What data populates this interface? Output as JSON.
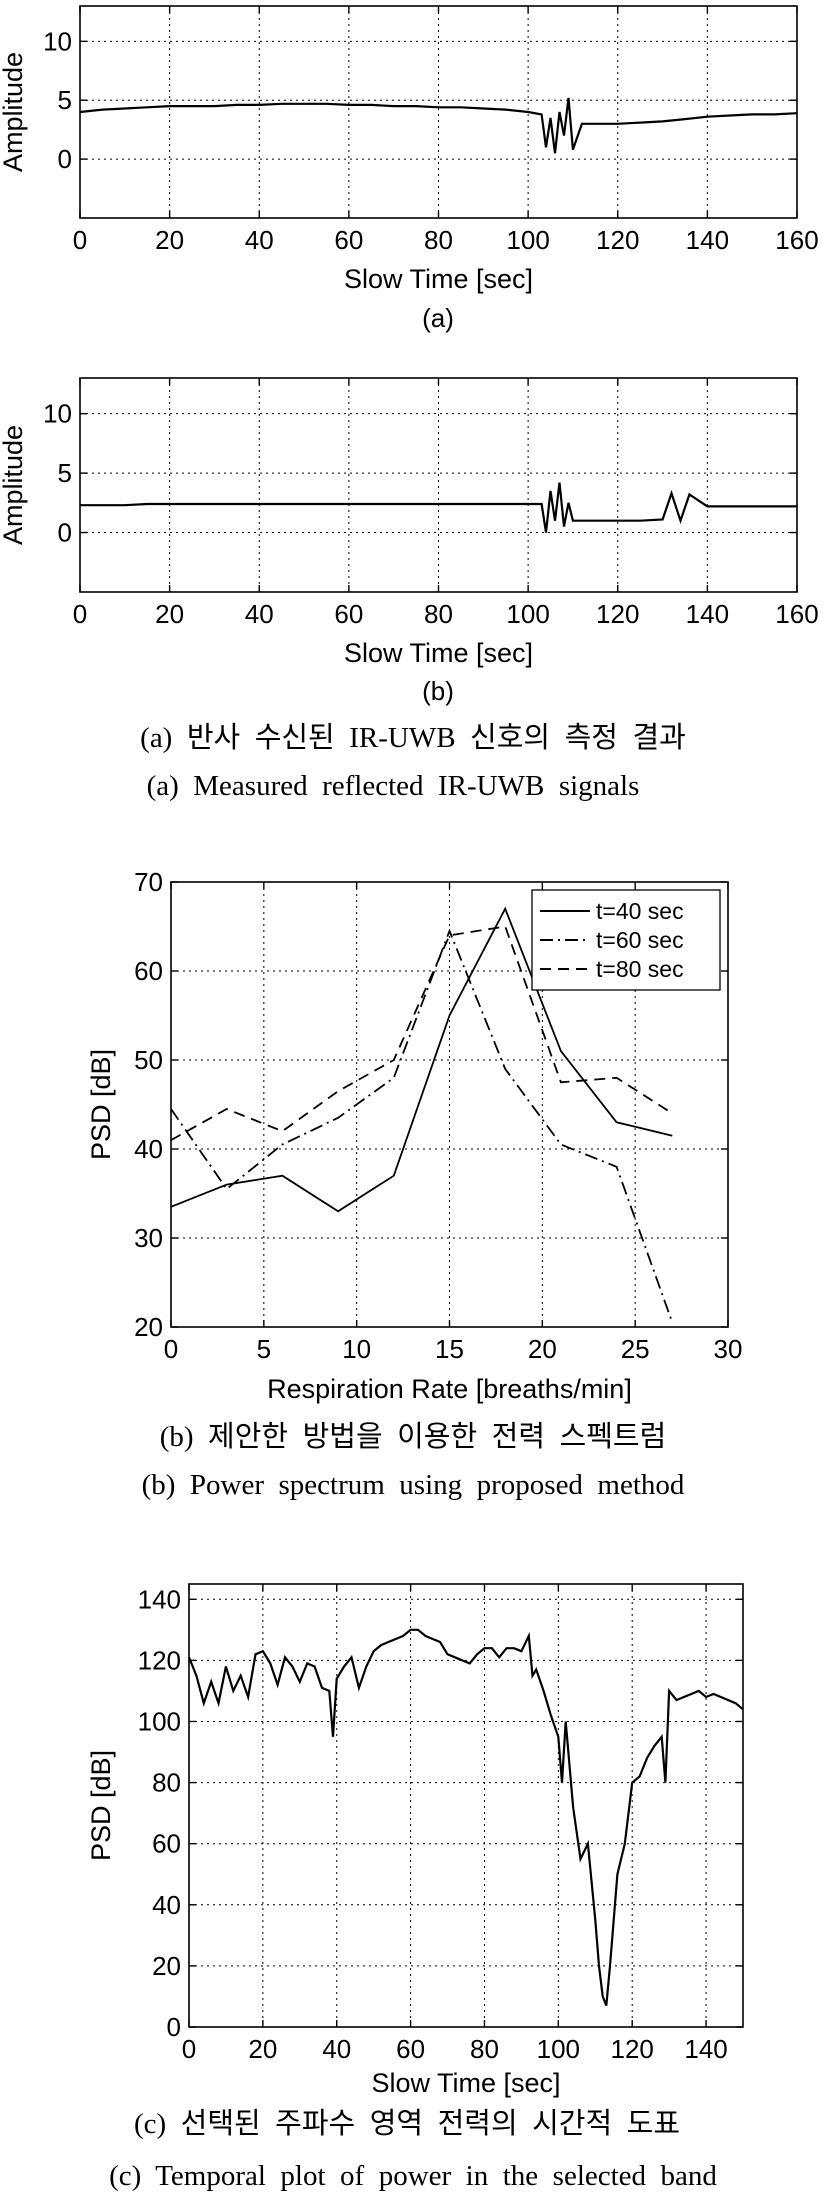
{
  "chart_data": [
    {
      "type": "line",
      "xlabel": "Slow Time [sec]",
      "ylabel": "Amplitude",
      "sublabel": "(a)",
      "xlim": [
        0,
        160
      ],
      "ylim": [
        -5,
        13
      ],
      "xticks": [
        0,
        20,
        40,
        60,
        80,
        100,
        120,
        140,
        160
      ],
      "yticks": [
        0,
        5,
        10
      ],
      "grid": true,
      "series": [
        {
          "x": [
            0,
            5,
            10,
            15,
            20,
            25,
            30,
            35,
            40,
            45,
            50,
            55,
            60,
            65,
            70,
            75,
            80,
            85,
            90,
            95,
            100,
            103,
            104,
            105,
            106,
            107,
            108,
            109,
            110,
            112,
            115,
            120,
            125,
            130,
            135,
            140,
            145,
            150,
            155,
            160
          ],
          "y": [
            4.0,
            4.2,
            4.3,
            4.4,
            4.5,
            4.5,
            4.5,
            4.6,
            4.6,
            4.7,
            4.7,
            4.7,
            4.6,
            4.6,
            4.5,
            4.5,
            4.4,
            4.4,
            4.3,
            4.2,
            4.0,
            3.8,
            1.0,
            3.5,
            0.5,
            4.0,
            2.0,
            5.2,
            0.8,
            3.0,
            3.0,
            3.0,
            3.1,
            3.2,
            3.4,
            3.6,
            3.7,
            3.8,
            3.8,
            3.9
          ]
        }
      ]
    },
    {
      "type": "line",
      "xlabel": "Slow Time [sec]",
      "ylabel": "Amplitude",
      "sublabel": "(b)",
      "xlim": [
        0,
        160
      ],
      "ylim": [
        -5,
        13
      ],
      "xticks": [
        0,
        20,
        40,
        60,
        80,
        100,
        120,
        140,
        160
      ],
      "yticks": [
        0,
        5,
        10
      ],
      "grid": true,
      "series": [
        {
          "x": [
            0,
            5,
            10,
            15,
            20,
            25,
            30,
            35,
            40,
            45,
            50,
            55,
            60,
            65,
            70,
            75,
            80,
            85,
            90,
            95,
            100,
            103,
            104,
            105,
            106,
            107,
            108,
            109,
            110,
            115,
            120,
            125,
            130,
            132,
            134,
            136,
            140,
            145,
            150,
            155,
            160
          ],
          "y": [
            2.3,
            2.3,
            2.3,
            2.4,
            2.4,
            2.4,
            2.4,
            2.4,
            2.4,
            2.4,
            2.4,
            2.4,
            2.4,
            2.4,
            2.4,
            2.4,
            2.4,
            2.4,
            2.4,
            2.4,
            2.4,
            2.4,
            0.0,
            3.5,
            1.0,
            4.2,
            0.5,
            2.5,
            1.0,
            1.0,
            1.0,
            1.0,
            1.1,
            3.3,
            1.0,
            3.2,
            2.2,
            2.2,
            2.2,
            2.2,
            2.2
          ]
        }
      ]
    },
    {
      "type": "line",
      "xlabel": "Respiration Rate [breaths/min]",
      "ylabel": "PSD [dB]",
      "xlim": [
        0,
        30
      ],
      "ylim": [
        20,
        70
      ],
      "xticks": [
        0,
        5,
        10,
        15,
        20,
        25,
        30
      ],
      "yticks": [
        20,
        30,
        40,
        50,
        60,
        70
      ],
      "grid": true,
      "legend": "top-right",
      "series": [
        {
          "name": "t=40 sec",
          "style": "solid",
          "x": [
            0,
            3,
            6,
            9,
            12,
            15,
            18,
            21,
            24,
            27
          ],
          "y": [
            33.5,
            36,
            37,
            33,
            37,
            55,
            67,
            51,
            43,
            41.5
          ]
        },
        {
          "name": "t=60 sec",
          "style": "dashdot",
          "x": [
            0,
            3,
            6,
            9,
            12,
            15,
            18,
            21,
            24,
            27
          ],
          "y": [
            44.5,
            35.5,
            40.5,
            43.5,
            48,
            64.5,
            49,
            40.5,
            38,
            20.5
          ]
        },
        {
          "name": "t=80 sec",
          "style": "dashed",
          "x": [
            0,
            3,
            6,
            9,
            12,
            15,
            18,
            21,
            24,
            27
          ],
          "y": [
            41,
            44.5,
            42,
            46.5,
            50,
            64,
            65,
            47.5,
            48,
            44
          ]
        }
      ]
    },
    {
      "type": "line",
      "xlabel": "Slow Time [sec]",
      "ylabel": "PSD [dB]",
      "xlim": [
        0,
        150
      ],
      "ylim": [
        0,
        145
      ],
      "xticks": [
        0,
        20,
        40,
        60,
        80,
        100,
        120,
        140
      ],
      "yticks": [
        0,
        20,
        40,
        60,
        80,
        100,
        120,
        140
      ],
      "grid": true,
      "series": [
        {
          "x": [
            0,
            2,
            4,
            6,
            8,
            10,
            12,
            14,
            16,
            18,
            20,
            22,
            24,
            26,
            28,
            30,
            32,
            34,
            36,
            38,
            39,
            40,
            42,
            44,
            46,
            48,
            50,
            52,
            54,
            56,
            58,
            60,
            62,
            64,
            66,
            68,
            70,
            72,
            74,
            76,
            78,
            80,
            82,
            84,
            86,
            88,
            90,
            92,
            93,
            94,
            96,
            98,
            100,
            101,
            102,
            104,
            106,
            108,
            110,
            111,
            112,
            113,
            114,
            116,
            118,
            120,
            122,
            124,
            126,
            128,
            129,
            130,
            132,
            134,
            136,
            138,
            140,
            142,
            144,
            146,
            148,
            150
          ],
          "y": [
            121,
            115,
            106,
            113,
            106,
            118,
            110,
            115,
            108,
            122,
            123,
            119,
            112,
            121,
            118,
            113,
            119,
            118,
            111,
            110,
            95,
            114,
            118,
            121,
            111,
            118,
            123,
            125,
            126,
            127,
            128,
            130,
            130,
            128,
            127,
            126,
            122,
            121,
            120,
            119,
            122,
            124,
            124,
            121,
            124,
            124,
            123,
            128,
            115,
            117,
            110,
            102,
            95,
            80,
            100,
            72,
            55,
            60,
            35,
            20,
            10,
            7,
            20,
            50,
            60,
            80,
            82,
            88,
            92,
            95,
            80,
            110,
            107,
            108,
            109,
            110,
            108,
            109,
            108,
            107,
            106,
            104
          ]
        }
      ]
    }
  ],
  "captions": {
    "a_korean": "(a)  반사  수신된  IR-UWB  신호의  측정  결과",
    "a_english": "(a)  Measured  reflected  IR-UWB  signals",
    "b_korean": "(b)  제안한  방법을  이용한  전력  스펙트럼",
    "b_english": "(b)  Power  spectrum  using  proposed  method",
    "c_korean": "(c)  선택된  주파수  영역  전력의  시간적  도표",
    "c_english": "(c)  Temporal  plot  of  power  in  the  selected  band"
  }
}
